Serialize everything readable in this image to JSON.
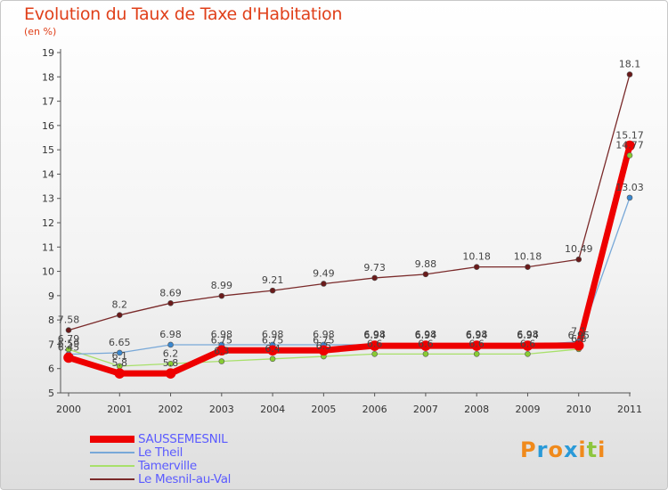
{
  "chart_data": {
    "type": "line",
    "title": "Evolution du Taux de Taxe d'Habitation",
    "subtitle": "(en %)",
    "xlabel": "",
    "ylabel": "",
    "x": [
      "2000",
      "2001",
      "2002",
      "2003",
      "2004",
      "2005",
      "2006",
      "2007",
      "2008",
      "2009",
      "2010",
      "2011"
    ],
    "yticks": [
      "5",
      "6",
      "7",
      "8",
      "9",
      "10",
      "11",
      "12",
      "13",
      "14",
      "15",
      "16",
      "17",
      "18",
      "19"
    ],
    "ylim": [
      5,
      19
    ],
    "grid": false,
    "legend_position": "bottom-left",
    "series": [
      {
        "name": "Le Mesnil-au-Val",
        "color": "#7a2a2a",
        "marker": "#6a1a1a",
        "values": [
          7.58,
          8.2,
          8.69,
          8.99,
          9.21,
          9.49,
          9.73,
          9.88,
          10.18,
          10.18,
          10.49,
          18.1
        ],
        "labels": [
          "7.58",
          "8.2",
          "8.69",
          "8.99",
          "9.21",
          "9.49",
          "9.73",
          "9.88",
          "10.18",
          "10.18",
          "10.49",
          "18.1"
        ]
      },
      {
        "name": "Tamerville",
        "color": "#a8e06a",
        "marker": "#88cc33",
        "values": [
          6.79,
          6.1,
          6.2,
          6.3,
          6.4,
          6.5,
          6.6,
          6.6,
          6.6,
          6.6,
          6.8,
          14.77
        ],
        "labels": [
          "6.79",
          "6.1",
          "6.2",
          "6.3",
          "6.4",
          "6.5",
          "6.6",
          "6.6",
          "6.6",
          "6.6",
          "6.8",
          "14.77"
        ]
      },
      {
        "name": "Le Theil",
        "color": "#78a8d8",
        "marker": "#3a88d0",
        "values": [
          6.59,
          6.65,
          6.98,
          6.98,
          6.98,
          6.98,
          6.98,
          6.98,
          6.98,
          6.98,
          7.1,
          13.03
        ],
        "labels": [
          "6.59",
          "6.65",
          "6.98",
          "6.98",
          "6.98",
          "6.98",
          "6.98",
          "6.98",
          "6.98",
          "6.98",
          "7.1",
          "13.03"
        ]
      },
      {
        "name": "SAUSSEMESNIL",
        "color": "#ee0000",
        "marker": "#ee0000",
        "values": [
          6.45,
          5.8,
          5.8,
          6.75,
          6.75,
          6.75,
          6.94,
          6.94,
          6.94,
          6.94,
          6.95,
          15.17
        ],
        "labels": [
          "6.45",
          "5.8",
          "5.8",
          "6.75",
          "6.75",
          "6.75",
          "6.94",
          "6.94",
          "6.94",
          "6.94",
          "6.95",
          "15.17"
        ]
      }
    ],
    "legend": [
      "SAUSSEMESNIL",
      "Le Theil",
      "Tamerville",
      "Le Mesnil-au-Val"
    ]
  },
  "legend_colors": [
    "#ee0000",
    "#78a8d8",
    "#a8e06a",
    "#7a2a2a"
  ],
  "logo": {
    "letters": [
      "P",
      "r",
      "o",
      "x",
      "i",
      "t",
      "i"
    ],
    "colors": [
      "#f08a1c",
      "#2a9ad8",
      "#f08a1c",
      "#2a9ad8",
      "#f08a1c",
      "#8dc63f",
      "#f08a1c"
    ]
  }
}
